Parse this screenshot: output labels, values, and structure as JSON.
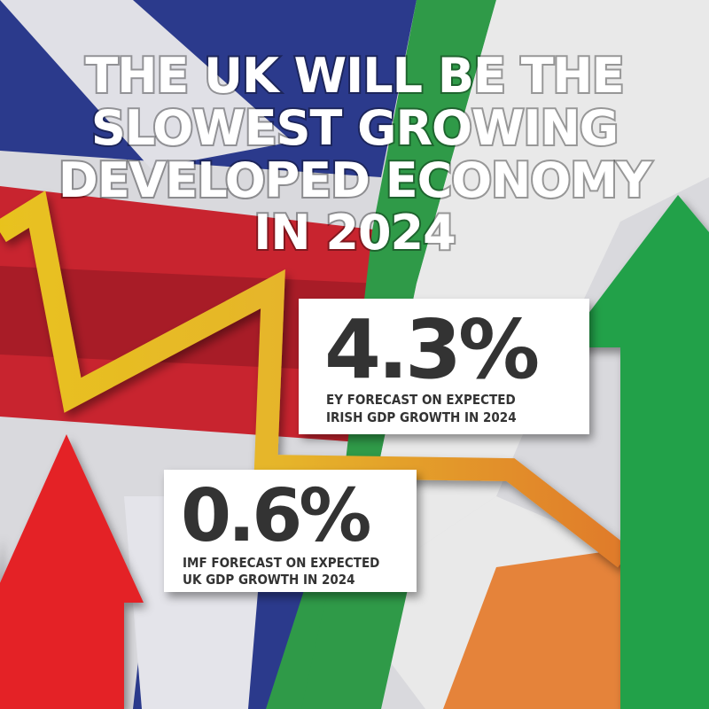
{
  "headline": {
    "lines": [
      "THE UK WILL BE THE",
      "SLOWEST GROWING",
      "DEVELOPED ECONOMY",
      "IN 2024"
    ]
  },
  "stats": [
    {
      "figure": "4.3%",
      "caption": [
        "EY FORECAST ON EXPECTED",
        "IRISH GDP GROWTH IN 2024"
      ]
    },
    {
      "figure": "0.6%",
      "caption": [
        "IMF FORECAST ON EXPECTED",
        "UK GDP GROWTH IN 2024"
      ]
    }
  ]
}
